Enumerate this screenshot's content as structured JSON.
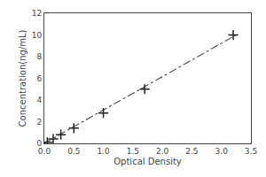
{
  "chart_data": {
    "type": "scatter",
    "xlabel": "Optical Density",
    "ylabel": "Concentration(ng/mL)",
    "xlim": [
      0,
      3.5
    ],
    "ylim": [
      0,
      12
    ],
    "xticks": [
      {
        "value": 0,
        "label": "0.0"
      },
      0.5,
      {
        "value": 1,
        "label": "1.0"
      },
      1.5,
      {
        "value": 2,
        "label": "2.0"
      },
      2.5,
      {
        "value": 3,
        "label": "3.0"
      },
      3.5
    ],
    "yticks": [
      0,
      2,
      4,
      6,
      8,
      10,
      12
    ],
    "grid": false,
    "series": [
      {
        "type": "line",
        "x": [
          0.0,
          3.25
        ],
        "values": [
          0.0,
          10.0
        ],
        "color": "#555555",
        "line_style": "dashdot"
      },
      {
        "type": "scatter",
        "x": [
          0.05,
          0.15,
          0.28,
          0.5,
          1.0,
          1.7,
          3.2
        ],
        "values": [
          0.1,
          0.4,
          0.8,
          1.4,
          2.8,
          5.0,
          10.0
        ],
        "color": "#222222",
        "marker": "plus"
      }
    ]
  }
}
